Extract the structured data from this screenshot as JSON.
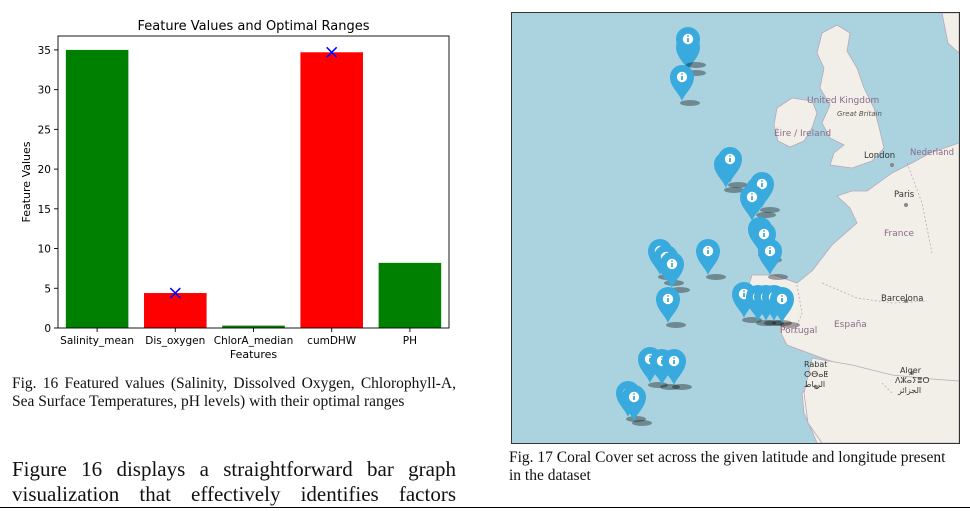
{
  "figure16": {
    "chart_data": {
      "type": "bar",
      "title": "Feature Values and Optimal Ranges",
      "xlabel": "Features",
      "ylabel": "Feature Values",
      "categories": [
        "Salinity_mean",
        "Dis_oxygen",
        "ChlorA_median",
        "cumDHW",
        "PH"
      ],
      "values": [
        35.0,
        4.4,
        0.3,
        34.7,
        8.2
      ],
      "bar_colors": [
        "#008000",
        "#ff0000",
        "#008000",
        "#ff0000",
        "#008000"
      ],
      "optimal_markers": [
        {
          "category": "Dis_oxygen",
          "value": 4.4
        },
        {
          "category": "cumDHW",
          "value": 34.7
        }
      ],
      "marker_color": "#0000ff",
      "ylim": [
        0,
        36.75
      ],
      "yticks": [
        0,
        5,
        10,
        15,
        20,
        25,
        30,
        35
      ],
      "grid": false
    },
    "caption": "Fig. 16 Featured values (Salinity, Dissolved Oxygen, Chlorophyll-A, Sea Surface Temperatures, pH levels) with their optimal ranges"
  },
  "body_text": "Figure 16 displays a straightforward bar graph visualization that effectively identifies factors",
  "figure17": {
    "caption": "Fig. 17 Coral Cover set across the given latitude and longitude present in the dataset",
    "map_labels": {
      "uk": "United Kingdom",
      "gb": "Great Britain",
      "ireland": "Éire / Ireland",
      "london": "London",
      "nederland": "Nederland",
      "paris": "Paris",
      "france": "France",
      "barcelona": "Barcelona",
      "portugal": "Portugal",
      "espana": "España",
      "rabat": "Rabat",
      "rabat_tifinagh": "ⵔⴱⴰⵟ",
      "rabat_arabic": "الرباط",
      "alger": "Alger",
      "alger_tifinagh": "ⴷⵣⴰⵢⴻⵔ",
      "alger_arabic": "الجزائر"
    },
    "colors": {
      "sea": "#aad3df",
      "land": "#f2efe9",
      "marker": "#38aadd"
    },
    "marker_icon": "info-icon"
  }
}
